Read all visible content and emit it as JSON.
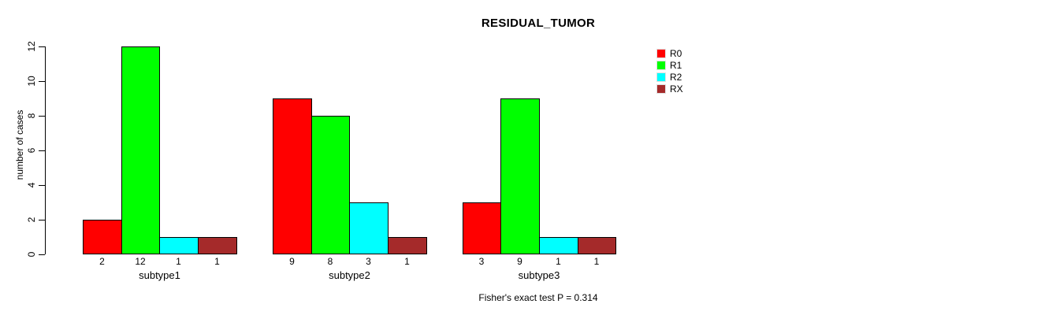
{
  "chart_data": {
    "type": "bar",
    "title": "RESIDUAL_TUMOR",
    "xlabel": "",
    "ylabel": "number of cases",
    "categories": [
      "subtype1",
      "subtype2",
      "subtype3"
    ],
    "series": [
      {
        "name": "R0",
        "color": "#ff0000",
        "values": [
          2,
          9,
          3
        ]
      },
      {
        "name": "R1",
        "color": "#00ff00",
        "values": [
          12,
          8,
          9
        ]
      },
      {
        "name": "R2",
        "color": "#00ffff",
        "values": [
          1,
          3,
          1
        ]
      },
      {
        "name": "RX",
        "color": "#a52a2a",
        "values": [
          1,
          1,
          1
        ]
      }
    ],
    "ylim": [
      0,
      12
    ],
    "yticks": [
      0,
      2,
      4,
      6,
      8,
      10,
      12
    ],
    "bar_value_labels_shown": true,
    "grid": false,
    "legend_position": "right",
    "legend_entries": [
      "R0",
      "R1",
      "R2",
      "RX"
    ],
    "annotation": "Fisher's exact test P = 0.314",
    "background_color": "#ffffff",
    "text_color": "#000000"
  }
}
